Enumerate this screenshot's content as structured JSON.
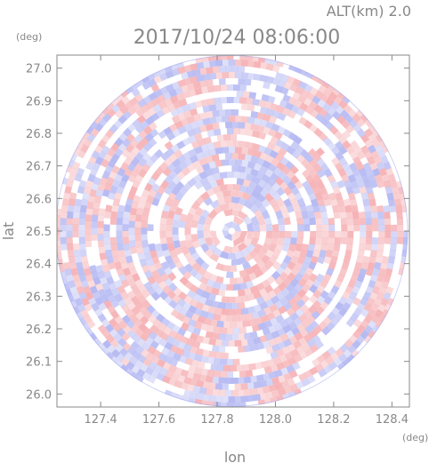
{
  "chart_data": {
    "type": "heatmap",
    "title": "2017/10/24 08:06:00",
    "subtitle": "ALT(km) 2.0",
    "xlabel": "lon",
    "ylabel": "lat",
    "xunit": "(deg)",
    "yunit": "(deg)",
    "xlim": [
      127.25,
      128.46
    ],
    "ylim": [
      25.96,
      27.04
    ],
    "xticks": [
      "127.4",
      "127.6",
      "127.8",
      "128.0",
      "128.2",
      "128.4"
    ],
    "yticks": [
      "26.0",
      "26.1",
      "26.2",
      "26.3",
      "26.4",
      "26.5",
      "26.6",
      "26.7",
      "26.8",
      "26.9",
      "27.0"
    ],
    "center": {
      "lon": 127.85,
      "lat": 26.5
    },
    "radius_deg_lat": 0.54,
    "colors": {
      "positive": "#f4a6aa",
      "negative": "#a9aef0",
      "neutral": "#ffffff",
      "axis": "#888888"
    },
    "grid": false,
    "legend": "none"
  }
}
